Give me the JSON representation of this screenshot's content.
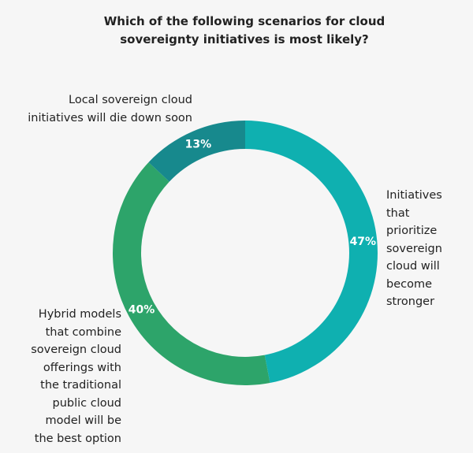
{
  "chart_data": {
    "type": "pie",
    "title_lines": [
      "Which of the following scenarios for cloud",
      "sovereignty initiatives is most likely?"
    ],
    "slices": [
      {
        "label_lines": [
          "Initiatives",
          "that",
          "prioritize",
          "sovereign",
          "cloud will",
          "become",
          "stronger"
        ],
        "value": 47,
        "value_label": "47%",
        "color": "#0fb0b0"
      },
      {
        "label_lines": [
          "Hybrid models",
          "that combine",
          "sovereign cloud",
          "offerings with",
          "the traditional",
          "public cloud",
          "model will be",
          "the best option"
        ],
        "value": 40,
        "value_label": "40%",
        "color": "#2da46a"
      },
      {
        "label_lines": [
          "Local sovereign cloud",
          "initiatives will die down soon"
        ],
        "value": 13,
        "value_label": "13%",
        "color": "#17898d"
      }
    ]
  }
}
